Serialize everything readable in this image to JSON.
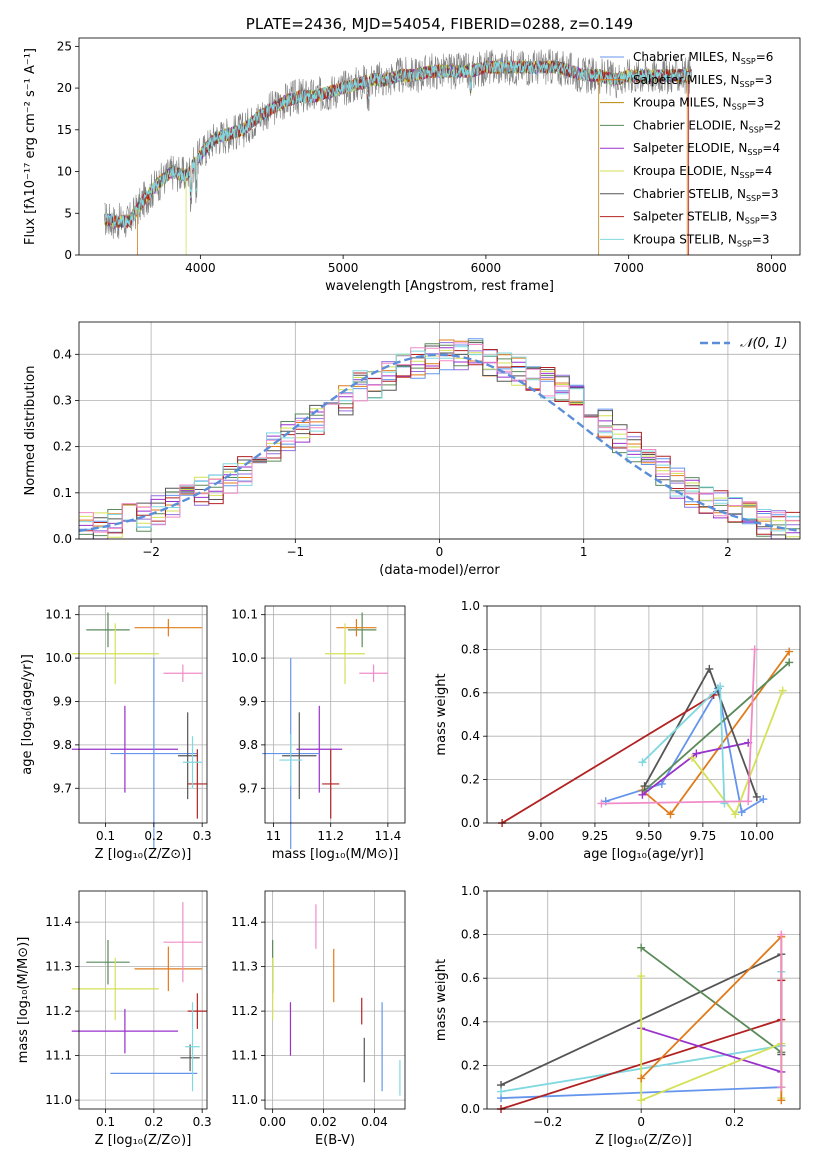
{
  "colors": [
    "#6495ed",
    "#e07b1a",
    "#9370db",
    "#5a8a5a",
    "#9932cc",
    "#d4e157",
    "#555555",
    "#b22222",
    "#80d8e0",
    "#f08cc8"
  ],
  "chart_data": [
    {
      "id": "spectrum",
      "type": "line",
      "title": "PLATE=2436, MJD=54054, FIBERID=0288, z=0.149",
      "xlabel": "wavelength [Angstrom, rest frame]",
      "ylabel": "Flux [fλ10⁻¹⁷ erg cm⁻² s⁻¹ A⁻¹]",
      "xlim": [
        3150,
        8200
      ],
      "ylim": [
        0,
        26
      ],
      "xticks": [
        4000,
        5000,
        6000,
        7000,
        8000
      ],
      "yticks": [
        0,
        5,
        10,
        15,
        20,
        25
      ],
      "grid": false,
      "legend_position": "top-right",
      "series": [
        {
          "name": "Chabrier MILES, N_SSP=6",
          "color": "#6495ed"
        },
        {
          "name": "Salpeter MILES, N_SSP=3",
          "color": "#e07b1a"
        },
        {
          "name": "Kroupa MILES, N_SSP=3",
          "color": "#b8860b"
        },
        {
          "name": "Chabrier ELODIE, N_SSP=2",
          "color": "#5a8a5a"
        },
        {
          "name": "Salpeter ELODIE, N_SSP=4",
          "color": "#9932cc"
        },
        {
          "name": "Kroupa ELODIE, N_SSP=4",
          "color": "#d4e157"
        },
        {
          "name": "Chabrier STELIB, N_SSP=3",
          "color": "#555555"
        },
        {
          "name": "Salpeter STELIB, N_SSP=3",
          "color": "#b22222"
        },
        {
          "name": "Kroupa STELIB, N_SSP=3",
          "color": "#80d8e0"
        }
      ],
      "observed_color": "#808080",
      "continuum": {
        "x": [
          3300,
          3400,
          3500,
          3600,
          3700,
          3800,
          3900,
          4000,
          4100,
          4200,
          4300,
          4400,
          4500,
          4600,
          4700,
          4800,
          4900,
          5000,
          5100,
          5200,
          5300,
          5400,
          5500,
          5600,
          5700,
          5800,
          5900,
          6000,
          6100,
          6200,
          6300,
          6400,
          6500,
          6600,
          6700,
          6800,
          6900,
          7000
        ],
        "y": [
          4.5,
          4.0,
          4.0,
          6.5,
          8.5,
          10.0,
          9.5,
          12.0,
          14.0,
          14.5,
          15.0,
          16.5,
          17.5,
          18.5,
          19.0,
          19.0,
          19.5,
          20.0,
          20.5,
          21.0,
          21.0,
          21.5,
          21.5,
          22.0,
          22.0,
          22.0,
          22.0,
          22.5,
          22.5,
          22.5,
          22.5,
          22.5,
          22.5,
          22.0,
          21.5,
          21.5,
          21.0,
          21.5
        ]
      }
    },
    {
      "id": "residual_hist",
      "type": "bar",
      "xlabel": "(data-model)/error",
      "ylabel": "Normed distribution",
      "xlim": [
        -2.5,
        2.5
      ],
      "ylim": [
        0,
        0.47
      ],
      "xticks": [
        -2,
        -1,
        0,
        1,
        2
      ],
      "yticks": [
        0.0,
        0.1,
        0.2,
        0.3,
        0.4
      ],
      "grid": true,
      "legend_position": "top-right",
      "legend_label": "𝒩(0, 1)",
      "gauss_color": "#5b8ed8",
      "bin_edges_start": -2.5,
      "bin_width": 0.1,
      "counts": [
        0.025,
        0.03,
        0.035,
        0.045,
        0.05,
        0.065,
        0.075,
        0.09,
        0.1,
        0.105,
        0.13,
        0.15,
        0.17,
        0.2,
        0.22,
        0.24,
        0.26,
        0.28,
        0.3,
        0.33,
        0.34,
        0.35,
        0.37,
        0.38,
        0.39,
        0.4,
        0.4,
        0.4,
        0.38,
        0.37,
        0.36,
        0.35,
        0.34,
        0.32,
        0.3,
        0.28,
        0.25,
        0.22,
        0.2,
        0.17,
        0.15,
        0.12,
        0.1,
        0.09,
        0.075,
        0.06,
        0.05,
        0.04,
        0.03,
        0.025
      ]
    },
    {
      "id": "age_vs_Z",
      "type": "scatter",
      "xlabel": "Z [log₁₀(Z/Z⊙)]",
      "ylabel": "age  [log₁₀(age/yr)]",
      "xlim": [
        0.045,
        0.31
      ],
      "ylim": [
        9.62,
        10.12
      ],
      "xticks": [
        0.1,
        0.2,
        0.3
      ],
      "yticks": [
        9.7,
        9.8,
        9.9,
        10.0,
        10.1
      ],
      "grid": true,
      "points": [
        {
          "x": 0.105,
          "y": 10.065,
          "xerr": 0.045,
          "yerr": 0.04,
          "color": "#5a8a5a"
        },
        {
          "x": 0.23,
          "y": 10.07,
          "xerr": 0.07,
          "yerr": 0.02,
          "color": "#e07b1a"
        },
        {
          "x": 0.12,
          "y": 10.01,
          "xerr": 0.09,
          "yerr": 0.07,
          "color": "#d4e157"
        },
        {
          "x": 0.26,
          "y": 9.965,
          "xerr": 0.04,
          "yerr": 0.02,
          "color": "#f08cc8"
        },
        {
          "x": 0.14,
          "y": 9.79,
          "xerr": 0.11,
          "yerr": 0.1,
          "color": "#9932cc"
        },
        {
          "x": 0.2,
          "y": 9.78,
          "xerr": 0.09,
          "yerr": 0.22,
          "color": "#6495ed"
        },
        {
          "x": 0.27,
          "y": 9.775,
          "xerr": 0.02,
          "yerr": 0.1,
          "color": "#555555"
        },
        {
          "x": 0.29,
          "y": 9.71,
          "xerr": 0.02,
          "yerr": 0.08,
          "color": "#b22222"
        },
        {
          "x": 0.28,
          "y": 9.76,
          "xerr": 0.02,
          "yerr": 0.06,
          "color": "#80d8e0"
        }
      ]
    },
    {
      "id": "age_vs_mass",
      "type": "scatter",
      "xlabel": "mass [log₁₀(M/M⊙)]",
      "ylabel": "",
      "xlim": [
        10.97,
        11.46
      ],
      "ylim": [
        9.62,
        10.12
      ],
      "xticks": [
        11.0,
        11.2,
        11.4
      ],
      "yticks": [
        9.7,
        9.8,
        9.9,
        10.0,
        10.1
      ],
      "grid": true,
      "points": [
        {
          "x": 11.31,
          "y": 10.065,
          "xerr": 0.05,
          "yerr": 0.04,
          "color": "#5a8a5a"
        },
        {
          "x": 11.29,
          "y": 10.07,
          "xerr": 0.07,
          "yerr": 0.02,
          "color": "#e07b1a"
        },
        {
          "x": 11.25,
          "y": 10.01,
          "xerr": 0.07,
          "yerr": 0.07,
          "color": "#d4e157"
        },
        {
          "x": 11.35,
          "y": 9.965,
          "xerr": 0.05,
          "yerr": 0.02,
          "color": "#f08cc8"
        },
        {
          "x": 11.16,
          "y": 9.79,
          "xerr": 0.08,
          "yerr": 0.1,
          "color": "#9932cc"
        },
        {
          "x": 11.06,
          "y": 9.78,
          "xerr": 0.1,
          "yerr": 0.22,
          "color": "#6495ed"
        },
        {
          "x": 11.09,
          "y": 9.775,
          "xerr": 0.06,
          "yerr": 0.1,
          "color": "#555555"
        },
        {
          "x": 11.2,
          "y": 9.71,
          "xerr": 0.03,
          "yerr": 0.08,
          "color": "#b22222"
        },
        {
          "x": 11.06,
          "y": 9.765,
          "xerr": 0.04,
          "yerr": 0.06,
          "color": "#80d8e0"
        }
      ]
    },
    {
      "id": "weight_vs_age",
      "type": "line",
      "xlabel": "age  [log₁₀(age/yr)]",
      "ylabel": "mass weight",
      "xlim": [
        8.75,
        10.2
      ],
      "ylim": [
        0,
        1.0
      ],
      "xticks": [
        9.0,
        9.25,
        9.5,
        9.75,
        10.0
      ],
      "xticklabels": [
        "9.00",
        "9.25",
        "9.50",
        "9.75",
        "10.00"
      ],
      "yticks": [
        0.0,
        0.2,
        0.4,
        0.6,
        0.8,
        1.0
      ],
      "grid": true,
      "series": [
        {
          "color": "#6495ed",
          "x": [
            9.3,
            9.56,
            9.82,
            9.93,
            10.03
          ],
          "y": [
            0.1,
            0.18,
            0.62,
            0.05,
            0.11
          ]
        },
        {
          "color": "#e07b1a",
          "x": [
            9.47,
            9.6,
            10.15
          ],
          "y": [
            0.15,
            0.04,
            0.79
          ]
        },
        {
          "color": "#5a8a5a",
          "x": [
            9.48,
            10.15
          ],
          "y": [
            0.15,
            0.74
          ]
        },
        {
          "color": "#9932cc",
          "x": [
            9.47,
            9.72,
            9.96
          ],
          "y": [
            0.13,
            0.32,
            0.37
          ]
        },
        {
          "color": "#d4e157",
          "x": [
            9.7,
            9.9,
            10.12
          ],
          "y": [
            0.3,
            0.04,
            0.61
          ]
        },
        {
          "color": "#555555",
          "x": [
            9.48,
            9.78,
            10.0
          ],
          "y": [
            0.17,
            0.71,
            0.12
          ]
        },
        {
          "color": "#b22222",
          "x": [
            8.82,
            9.8
          ],
          "y": [
            0.0,
            0.59
          ]
        },
        {
          "color": "#80d8e0",
          "x": [
            9.47,
            9.83,
            9.85
          ],
          "y": [
            0.28,
            0.63,
            0.09
          ]
        },
        {
          "color": "#f08cc8",
          "x": [
            9.28,
            9.96,
            9.99
          ],
          "y": [
            0.09,
            0.1,
            0.8
          ]
        }
      ]
    },
    {
      "id": "mass_vs_Z",
      "type": "scatter",
      "xlabel": "Z [log₁₀(Z/Z⊙)]",
      "ylabel": "mass [log₁₀(M/M⊙)]",
      "xlim": [
        0.045,
        0.31
      ],
      "ylim": [
        10.98,
        11.47
      ],
      "xticks": [
        0.1,
        0.2,
        0.3
      ],
      "yticks": [
        11.0,
        11.1,
        11.2,
        11.3,
        11.4
      ],
      "grid": true,
      "points": [
        {
          "x": 0.105,
          "y": 11.31,
          "xerr": 0.045,
          "yerr": 0.05,
          "color": "#5a8a5a"
        },
        {
          "x": 0.23,
          "y": 11.295,
          "xerr": 0.07,
          "yerr": 0.05,
          "color": "#e07b1a"
        },
        {
          "x": 0.12,
          "y": 11.25,
          "xerr": 0.09,
          "yerr": 0.07,
          "color": "#d4e157"
        },
        {
          "x": 0.26,
          "y": 11.355,
          "xerr": 0.04,
          "yerr": 0.09,
          "color": "#f08cc8"
        },
        {
          "x": 0.14,
          "y": 11.155,
          "xerr": 0.11,
          "yerr": 0.05,
          "color": "#9932cc"
        },
        {
          "x": 0.2,
          "y": 11.06,
          "xerr": 0.09,
          "yerr": 0.0,
          "color": "#6495ed"
        },
        {
          "x": 0.275,
          "y": 11.095,
          "xerr": 0.02,
          "yerr": 0.03,
          "color": "#555555"
        },
        {
          "x": 0.29,
          "y": 11.2,
          "xerr": 0.02,
          "yerr": 0.04,
          "color": "#b22222"
        },
        {
          "x": 0.28,
          "y": 11.12,
          "xerr": 0.015,
          "yerr": 0.1,
          "color": "#80d8e0"
        }
      ]
    },
    {
      "id": "mass_vs_ebv",
      "type": "scatter",
      "xlabel": "E(B-V)",
      "ylabel": "",
      "xlim": [
        -0.003,
        0.052
      ],
      "ylim": [
        10.98,
        11.47
      ],
      "xticks": [
        0.0,
        0.02,
        0.04
      ],
      "xticklabels": [
        "0.00",
        "0.02",
        "0.04"
      ],
      "yticks": [
        11.0,
        11.1,
        11.2,
        11.3,
        11.4
      ],
      "grid": true,
      "points": [
        {
          "x": 0.0,
          "y": 11.3,
          "yerr": 0.06,
          "color": "#5a8a5a"
        },
        {
          "x": 0.0,
          "y": 11.25,
          "yerr": 0.07,
          "color": "#d4e157"
        },
        {
          "x": 0.017,
          "y": 11.39,
          "yerr": 0.05,
          "color": "#f08cc8"
        },
        {
          "x": 0.024,
          "y": 11.28,
          "yerr": 0.06,
          "color": "#e07b1a"
        },
        {
          "x": 0.007,
          "y": 11.16,
          "yerr": 0.06,
          "color": "#9932cc"
        },
        {
          "x": 0.036,
          "y": 11.09,
          "yerr": 0.05,
          "color": "#555555"
        },
        {
          "x": 0.035,
          "y": 11.2,
          "yerr": 0.03,
          "color": "#b22222"
        },
        {
          "x": 0.043,
          "y": 11.12,
          "yerr": 0.1,
          "color": "#6495ed"
        },
        {
          "x": 0.05,
          "y": 11.05,
          "yerr": 0.04,
          "color": "#80d8e0"
        }
      ]
    },
    {
      "id": "weight_vs_Z",
      "type": "line",
      "xlabel": "Z [log₁₀(Z/Z⊙)]",
      "ylabel": "mass weight",
      "xlim": [
        -0.33,
        0.34
      ],
      "ylim": [
        0,
        1.0
      ],
      "xticks": [
        -0.2,
        0.0,
        0.2
      ],
      "yticks": [
        0.0,
        0.2,
        0.4,
        0.6,
        0.8,
        1.0
      ],
      "grid": true,
      "series": [
        {
          "color": "#6495ed",
          "x": [
            -0.3,
            0.3
          ],
          "y": [
            0.05,
            0.1
          ]
        },
        {
          "color": "#555555",
          "x": [
            -0.3,
            0.3,
            0.3,
            0.3
          ],
          "y": [
            0.11,
            0.71,
            0.25,
            0.29
          ]
        },
        {
          "color": "#80d8e0",
          "x": [
            -0.3,
            0.3,
            0.3
          ],
          "y": [
            0.08,
            0.29,
            0.63
          ]
        },
        {
          "color": "#b22222",
          "x": [
            -0.3,
            0.3,
            0.3
          ],
          "y": [
            0.0,
            0.41,
            0.59
          ]
        },
        {
          "color": "#5a8a5a",
          "x": [
            0.0,
            0.3
          ],
          "y": [
            0.74,
            0.26
          ]
        },
        {
          "color": "#9932cc",
          "x": [
            0.0,
            0.3
          ],
          "y": [
            0.37,
            0.17
          ]
        },
        {
          "color": "#d4e157",
          "x": [
            0.0,
            0.0,
            0.3,
            0.3
          ],
          "y": [
            0.61,
            0.04,
            0.3,
            0.05
          ]
        },
        {
          "color": "#e07b1a",
          "x": [
            0.0,
            0.3,
            0.3
          ],
          "y": [
            0.14,
            0.79,
            0.04
          ]
        },
        {
          "color": "#f08cc8",
          "x": [
            0.3,
            0.3
          ],
          "y": [
            0.8,
            0.1
          ]
        }
      ]
    }
  ]
}
